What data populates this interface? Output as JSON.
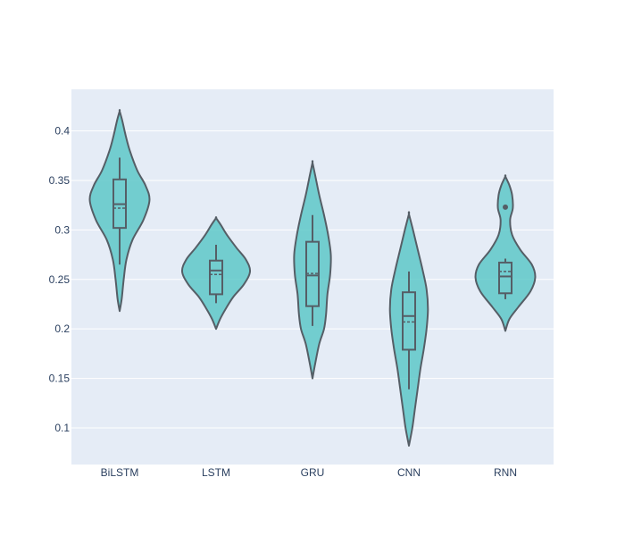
{
  "colors": {
    "plot_bg": "#e5ecf6",
    "grid": "#ffffff",
    "violin_fill": "#5ec8c8",
    "violin_line": "#555e66",
    "tick_text": "#2a3f5f"
  },
  "chart_data": {
    "type": "violin",
    "categories": [
      "BiLSTM",
      "LSTM",
      "GRU",
      "CNN",
      "RNN"
    ],
    "ylim": [
      0.063,
      0.442
    ],
    "yticks": [
      0.1,
      0.15,
      0.2,
      0.25,
      0.3,
      0.35,
      0.4
    ],
    "ytick_labels": [
      "0.1",
      "0.15",
      "0.2",
      "0.25",
      "0.3",
      "0.35",
      "0.4"
    ],
    "grid": true,
    "legend": false,
    "series": [
      {
        "category": "BiLSTM",
        "min": 0.218,
        "max": 0.42,
        "q1": 0.302,
        "median": 0.326,
        "q3": 0.351,
        "mean": 0.322,
        "whisker_low": 0.265,
        "whisker_high": 0.373,
        "outliers": [],
        "density": [
          [
            0.218,
            0.0
          ],
          [
            0.23,
            0.06
          ],
          [
            0.25,
            0.12
          ],
          [
            0.27,
            0.2
          ],
          [
            0.29,
            0.38
          ],
          [
            0.31,
            0.7
          ],
          [
            0.33,
            0.88
          ],
          [
            0.345,
            0.76
          ],
          [
            0.36,
            0.52
          ],
          [
            0.38,
            0.3
          ],
          [
            0.395,
            0.18
          ],
          [
            0.41,
            0.08
          ],
          [
            0.42,
            0.0
          ]
        ]
      },
      {
        "category": "LSTM",
        "min": 0.2,
        "max": 0.312,
        "q1": 0.235,
        "median": 0.259,
        "q3": 0.269,
        "mean": 0.255,
        "whisker_low": 0.226,
        "whisker_high": 0.285,
        "outliers": [],
        "density": [
          [
            0.2,
            0.0
          ],
          [
            0.21,
            0.12
          ],
          [
            0.22,
            0.28
          ],
          [
            0.232,
            0.5
          ],
          [
            0.245,
            0.82
          ],
          [
            0.258,
            1.0
          ],
          [
            0.27,
            0.88
          ],
          [
            0.282,
            0.6
          ],
          [
            0.295,
            0.32
          ],
          [
            0.305,
            0.14
          ],
          [
            0.312,
            0.0
          ]
        ]
      },
      {
        "category": "GRU",
        "min": 0.15,
        "max": 0.368,
        "q1": 0.223,
        "median": 0.254,
        "q3": 0.288,
        "mean": 0.256,
        "whisker_low": 0.203,
        "whisker_high": 0.315,
        "outliers": [],
        "density": [
          [
            0.15,
            0.0
          ],
          [
            0.165,
            0.08
          ],
          [
            0.185,
            0.2
          ],
          [
            0.2,
            0.34
          ],
          [
            0.215,
            0.4
          ],
          [
            0.235,
            0.44
          ],
          [
            0.255,
            0.52
          ],
          [
            0.275,
            0.54
          ],
          [
            0.295,
            0.46
          ],
          [
            0.315,
            0.34
          ],
          [
            0.335,
            0.2
          ],
          [
            0.355,
            0.08
          ],
          [
            0.368,
            0.0
          ]
        ]
      },
      {
        "category": "CNN",
        "min": 0.082,
        "max": 0.316,
        "q1": 0.179,
        "median": 0.213,
        "q3": 0.237,
        "mean": 0.207,
        "whisker_low": 0.139,
        "whisker_high": 0.258,
        "outliers": [],
        "density": [
          [
            0.082,
            0.0
          ],
          [
            0.1,
            0.1
          ],
          [
            0.12,
            0.18
          ],
          [
            0.14,
            0.26
          ],
          [
            0.16,
            0.34
          ],
          [
            0.18,
            0.44
          ],
          [
            0.2,
            0.52
          ],
          [
            0.22,
            0.56
          ],
          [
            0.24,
            0.52
          ],
          [
            0.26,
            0.4
          ],
          [
            0.28,
            0.26
          ],
          [
            0.3,
            0.12
          ],
          [
            0.316,
            0.0
          ]
        ]
      },
      {
        "category": "RNN",
        "min": 0.198,
        "max": 0.354,
        "q1": 0.236,
        "median": 0.253,
        "q3": 0.267,
        "mean": 0.258,
        "whisker_low": 0.23,
        "whisker_high": 0.271,
        "outliers": [
          0.323
        ],
        "density": [
          [
            0.198,
            0.0
          ],
          [
            0.21,
            0.12
          ],
          [
            0.222,
            0.38
          ],
          [
            0.238,
            0.74
          ],
          [
            0.252,
            0.88
          ],
          [
            0.265,
            0.78
          ],
          [
            0.28,
            0.44
          ],
          [
            0.295,
            0.2
          ],
          [
            0.31,
            0.14
          ],
          [
            0.322,
            0.22
          ],
          [
            0.335,
            0.2
          ],
          [
            0.345,
            0.12
          ],
          [
            0.354,
            0.0
          ]
        ]
      }
    ]
  }
}
